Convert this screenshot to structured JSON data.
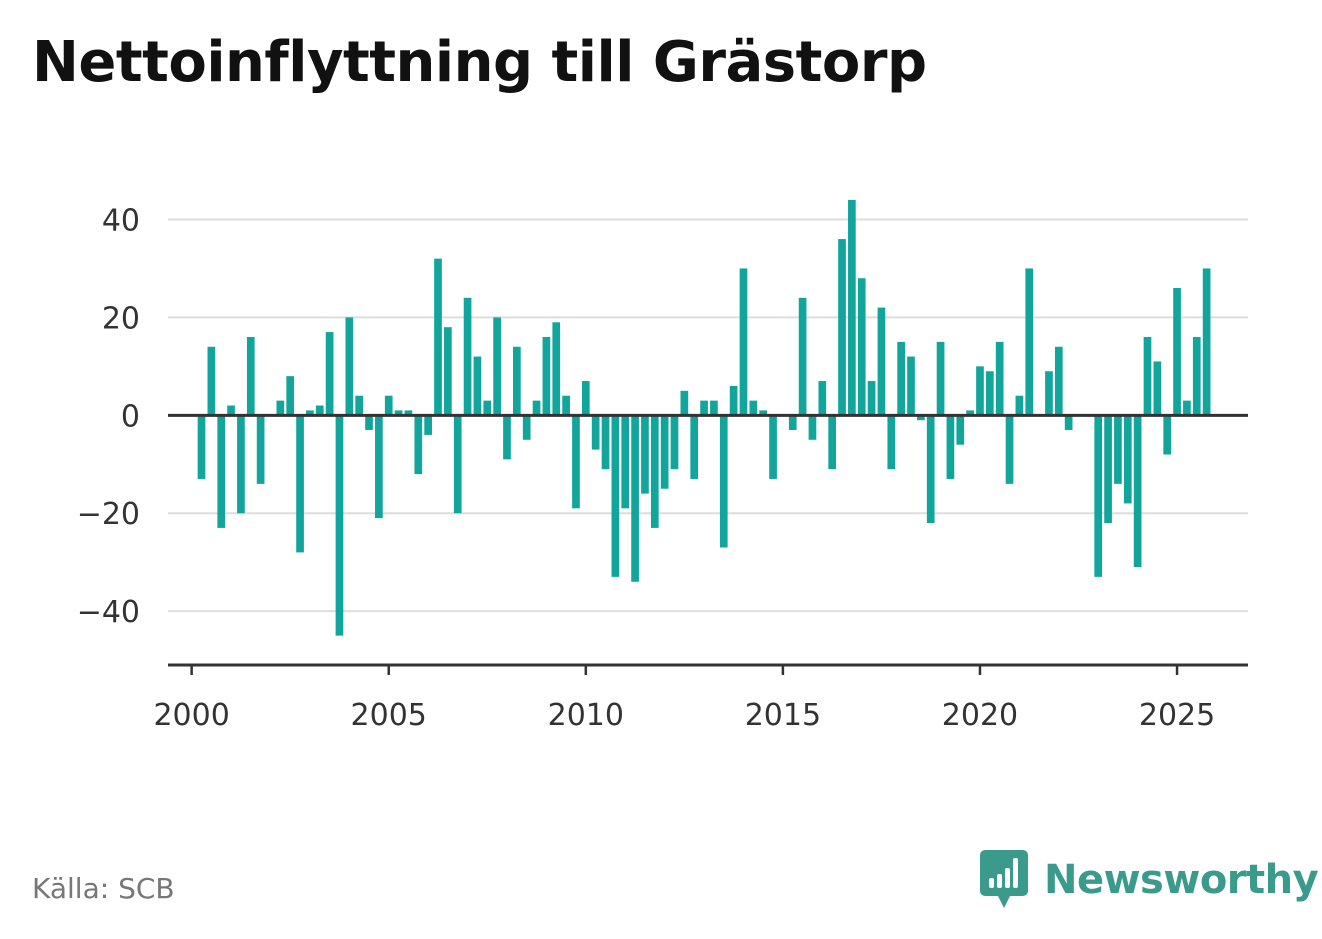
{
  "title": "Nettoinflyttning till Grästorp",
  "source": "Källa: SCB",
  "brand": {
    "name": "Newsworthy",
    "icon": "newsworthy-logo-icon"
  },
  "colors": {
    "bar": "#12a59c",
    "axis": "#333333",
    "grid": "#dddddd",
    "brand": "#3a9a8c"
  },
  "chart_data": {
    "type": "bar",
    "frequency": "quarterly",
    "x_start": 2000.25,
    "x_step": 0.25,
    "xlim": [
      1999.4,
      2026.8
    ],
    "ylim": [
      -51,
      45
    ],
    "x_ticks": [
      2000,
      2005,
      2010,
      2015,
      2020,
      2025
    ],
    "x_tick_labels": [
      "2000",
      "2005",
      "2010",
      "2015",
      "2020",
      "2025"
    ],
    "y_ticks": [
      40,
      20,
      0,
      -20,
      -40
    ],
    "y_tick_labels": [
      "40",
      "20",
      "0",
      "−20",
      "−40"
    ],
    "grid": true,
    "xlabel": "",
    "ylabel": "",
    "values": [
      -13,
      14,
      -23,
      2,
      -20,
      16,
      -14,
      0,
      3,
      8,
      -28,
      1,
      2,
      17,
      -45,
      20,
      4,
      -3,
      -21,
      4,
      1,
      1,
      -12,
      -4,
      32,
      18,
      -20,
      24,
      12,
      3,
      20,
      -9,
      14,
      -5,
      3,
      16,
      19,
      4,
      -19,
      7,
      -7,
      -11,
      -33,
      -19,
      -34,
      -16,
      -23,
      -15,
      -11,
      5,
      -13,
      3,
      3,
      -27,
      6,
      30,
      3,
      1,
      -13,
      0,
      -3,
      24,
      -5,
      7,
      -11,
      36,
      44,
      28,
      7,
      22,
      -11,
      15,
      12,
      -1,
      -22,
      15,
      -13,
      -6,
      1,
      10,
      9,
      15,
      -14,
      4,
      30,
      0,
      9,
      14,
      -3,
      0,
      0,
      -33,
      -22,
      -14,
      -18,
      -31,
      16,
      11,
      -8,
      26,
      3,
      16,
      30
    ]
  }
}
